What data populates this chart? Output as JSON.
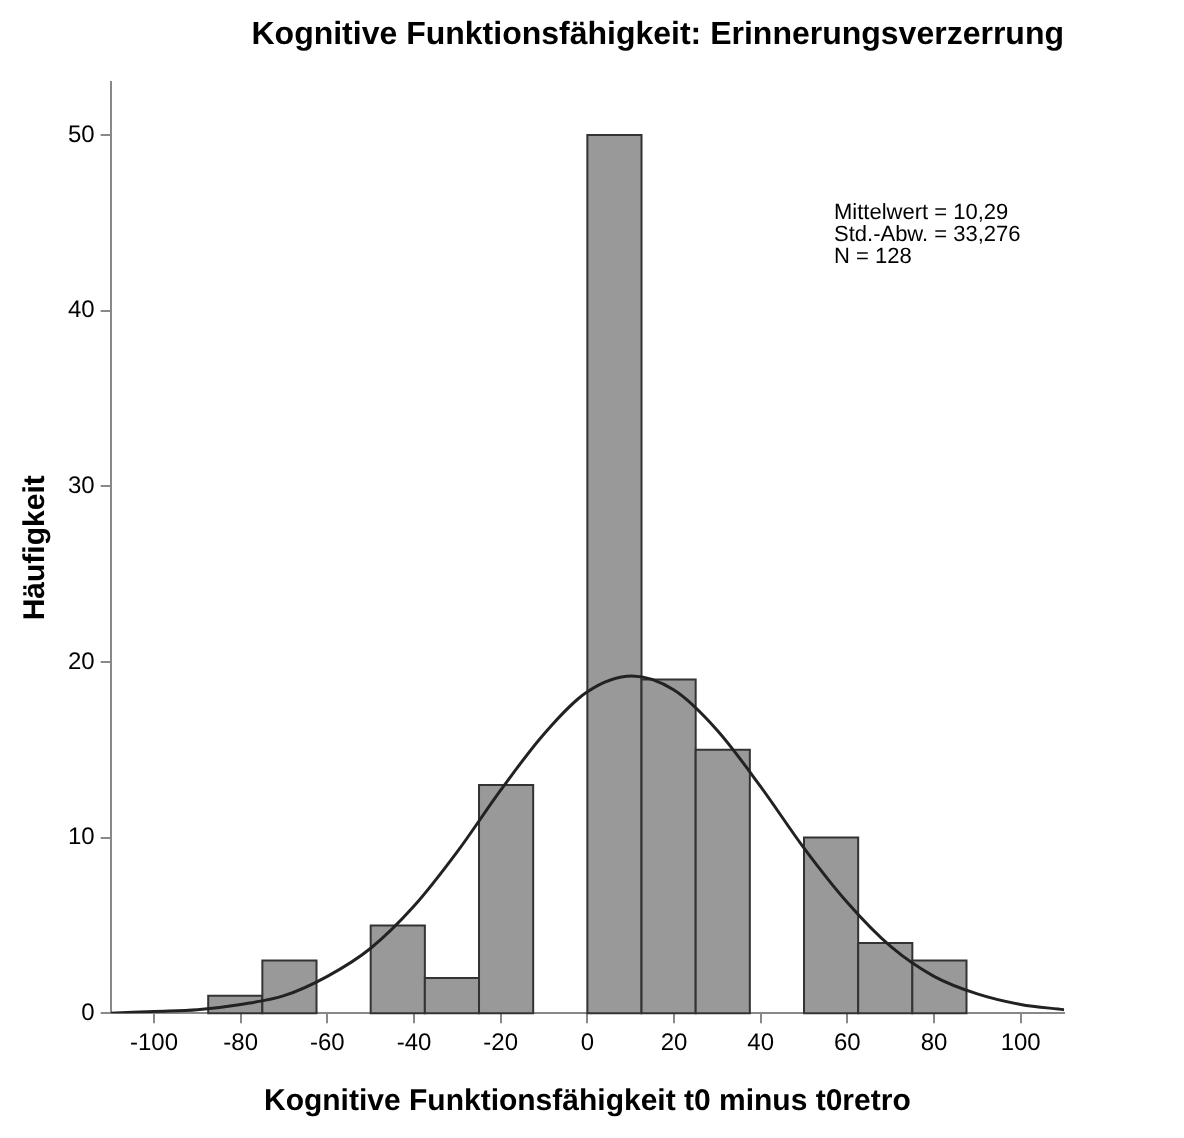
{
  "chart_data": {
    "type": "histogram",
    "title": "Kognitive Funktionsfähigkeit: Erinnerungsverzerrung",
    "xlabel": "Kognitive Funktionsfähigkeit t0 minus t0retro",
    "ylabel": "Häufigkeit",
    "bins": [
      -87.5,
      -75,
      -62.5,
      -50,
      -37.5,
      -25,
      -12.5,
      0,
      12.5,
      25,
      37.5,
      50,
      62.5,
      75,
      87.5
    ],
    "values": [
      1,
      3,
      0,
      5,
      2,
      13,
      0,
      50,
      19,
      15,
      0,
      10,
      4,
      3
    ],
    "color": "#999999",
    "series": [
      {
        "type": "line",
        "color": "#222222",
        "x": [
          -110,
          -100,
          -90,
          -80,
          -70,
          -60,
          -50,
          -40,
          -30,
          -20,
          -10,
          0,
          10.29,
          20,
          30,
          40,
          50,
          60,
          70,
          80,
          90,
          100,
          110
        ],
        "values": [
          0.0,
          0.1,
          0.2,
          0.5,
          1.0,
          2.1,
          3.7,
          6.1,
          9.2,
          12.7,
          15.9,
          18.3,
          19.2,
          18.4,
          16.1,
          12.9,
          9.4,
          6.3,
          3.8,
          2.1,
          1.1,
          0.5,
          0.2
        ]
      }
    ],
    "xlim": [
      -110,
      110
    ],
    "xticks": [
      -100,
      -80,
      -60,
      -40,
      -20,
      0,
      20,
      40,
      60,
      80,
      100
    ],
    "ylim": [
      0,
      53
    ],
    "yticks": [
      0,
      10,
      20,
      30,
      40,
      50
    ],
    "grid": false,
    "legend": false,
    "annotations": [
      "Mittelwert = 10,29",
      "Std.-Abw. = 33,276",
      "N = 128"
    ]
  }
}
